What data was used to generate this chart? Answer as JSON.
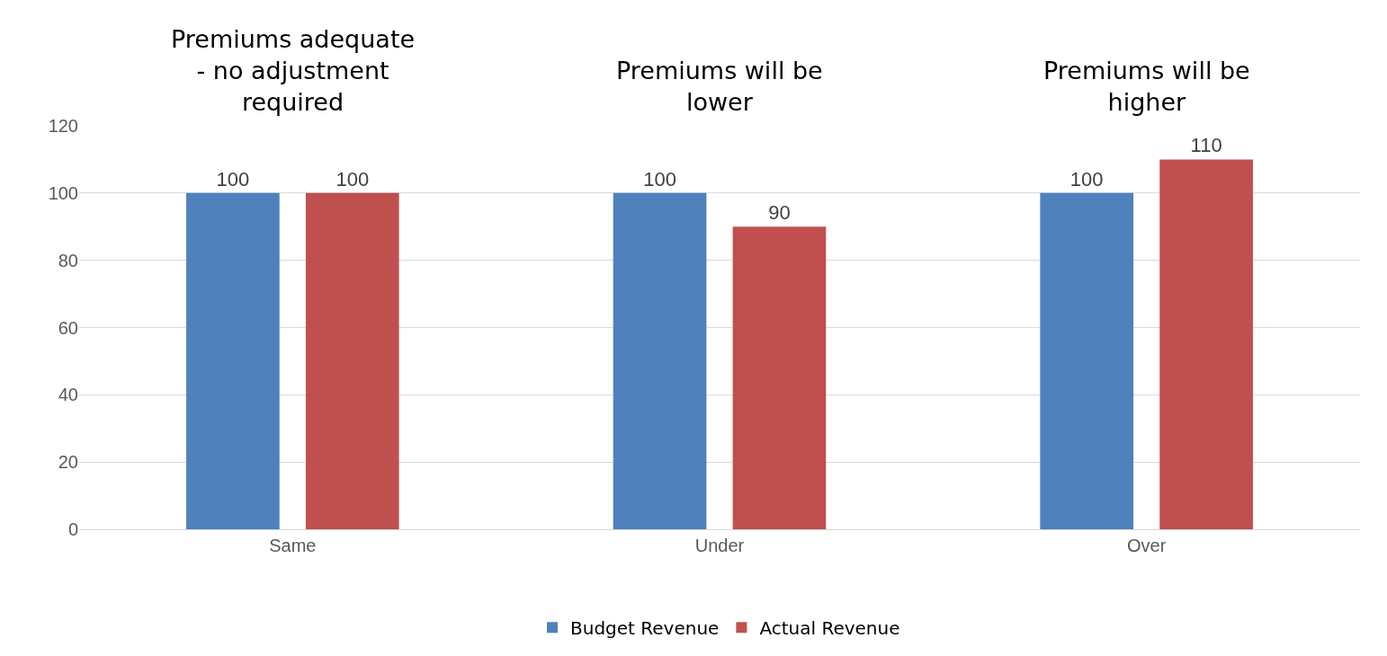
{
  "chart_data": {
    "type": "bar",
    "categories": [
      "Same",
      "Under",
      "Over"
    ],
    "series": [
      {
        "name": "Budget Revenue",
        "color": "#4f81bd",
        "values": [
          100,
          100,
          100
        ]
      },
      {
        "name": "Actual Revenue",
        "color": "#c0504d",
        "values": [
          100,
          90,
          110
        ]
      }
    ],
    "annotations": [
      "Premiums adequate - no adjustment required",
      "Premiums will be lower",
      "Premiums will be higher"
    ],
    "ylim": [
      0,
      120
    ],
    "yticks": [
      0,
      20,
      40,
      60,
      80,
      100,
      120
    ],
    "grid": "y",
    "legend": "bottom",
    "data_labels": true
  }
}
